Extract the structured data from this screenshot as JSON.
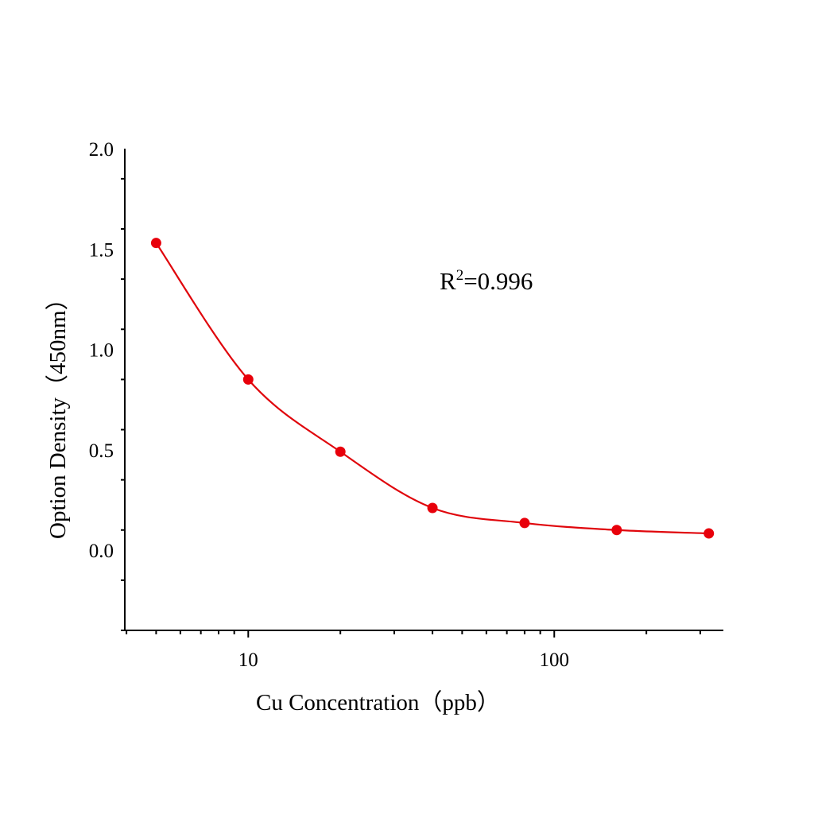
{
  "chart_data": {
    "type": "scatter",
    "title": "",
    "xlabel": "Cu  Concentration（ppb）",
    "ylabel": "Option Density（450nm）",
    "xscale": "log",
    "xlim": [
      3.95,
      357
    ],
    "ylim": [
      -0.4,
      2.0
    ],
    "x_ticks": [
      10,
      100
    ],
    "x_tick_labels": [
      "10",
      "100"
    ],
    "y_ticks": [
      0.0,
      0.5,
      1.0,
      1.5,
      2.0
    ],
    "y_tick_labels": [
      "0.0",
      "0.5",
      "1.0",
      "1.5",
      "2.0"
    ],
    "grid": false,
    "annotation": {
      "base": "R",
      "superscript": "2",
      "rest": "=0.996"
    },
    "series": [
      {
        "x": [
          5,
          10,
          20,
          40,
          80,
          160,
          320
        ],
        "y": [
          1.53,
          0.85,
          0.49,
          0.21,
          0.135,
          0.1,
          0.083
        ],
        "marker": "circle",
        "fit_line": true,
        "color": "#e8000b"
      }
    ]
  }
}
